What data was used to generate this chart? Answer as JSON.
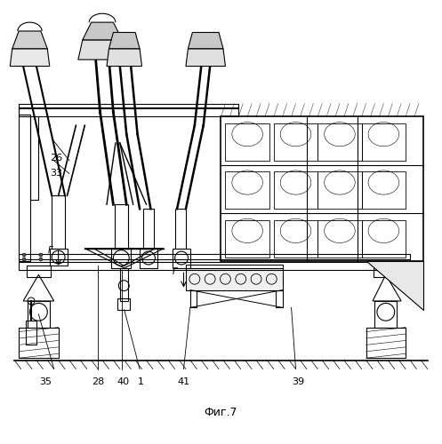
{
  "title": "Фиг.7",
  "bg_color": "#ffffff",
  "line_color": "#000000",
  "line_width": 0.8,
  "fig_width": 4.97,
  "fig_height": 5.0,
  "dpi": 100
}
